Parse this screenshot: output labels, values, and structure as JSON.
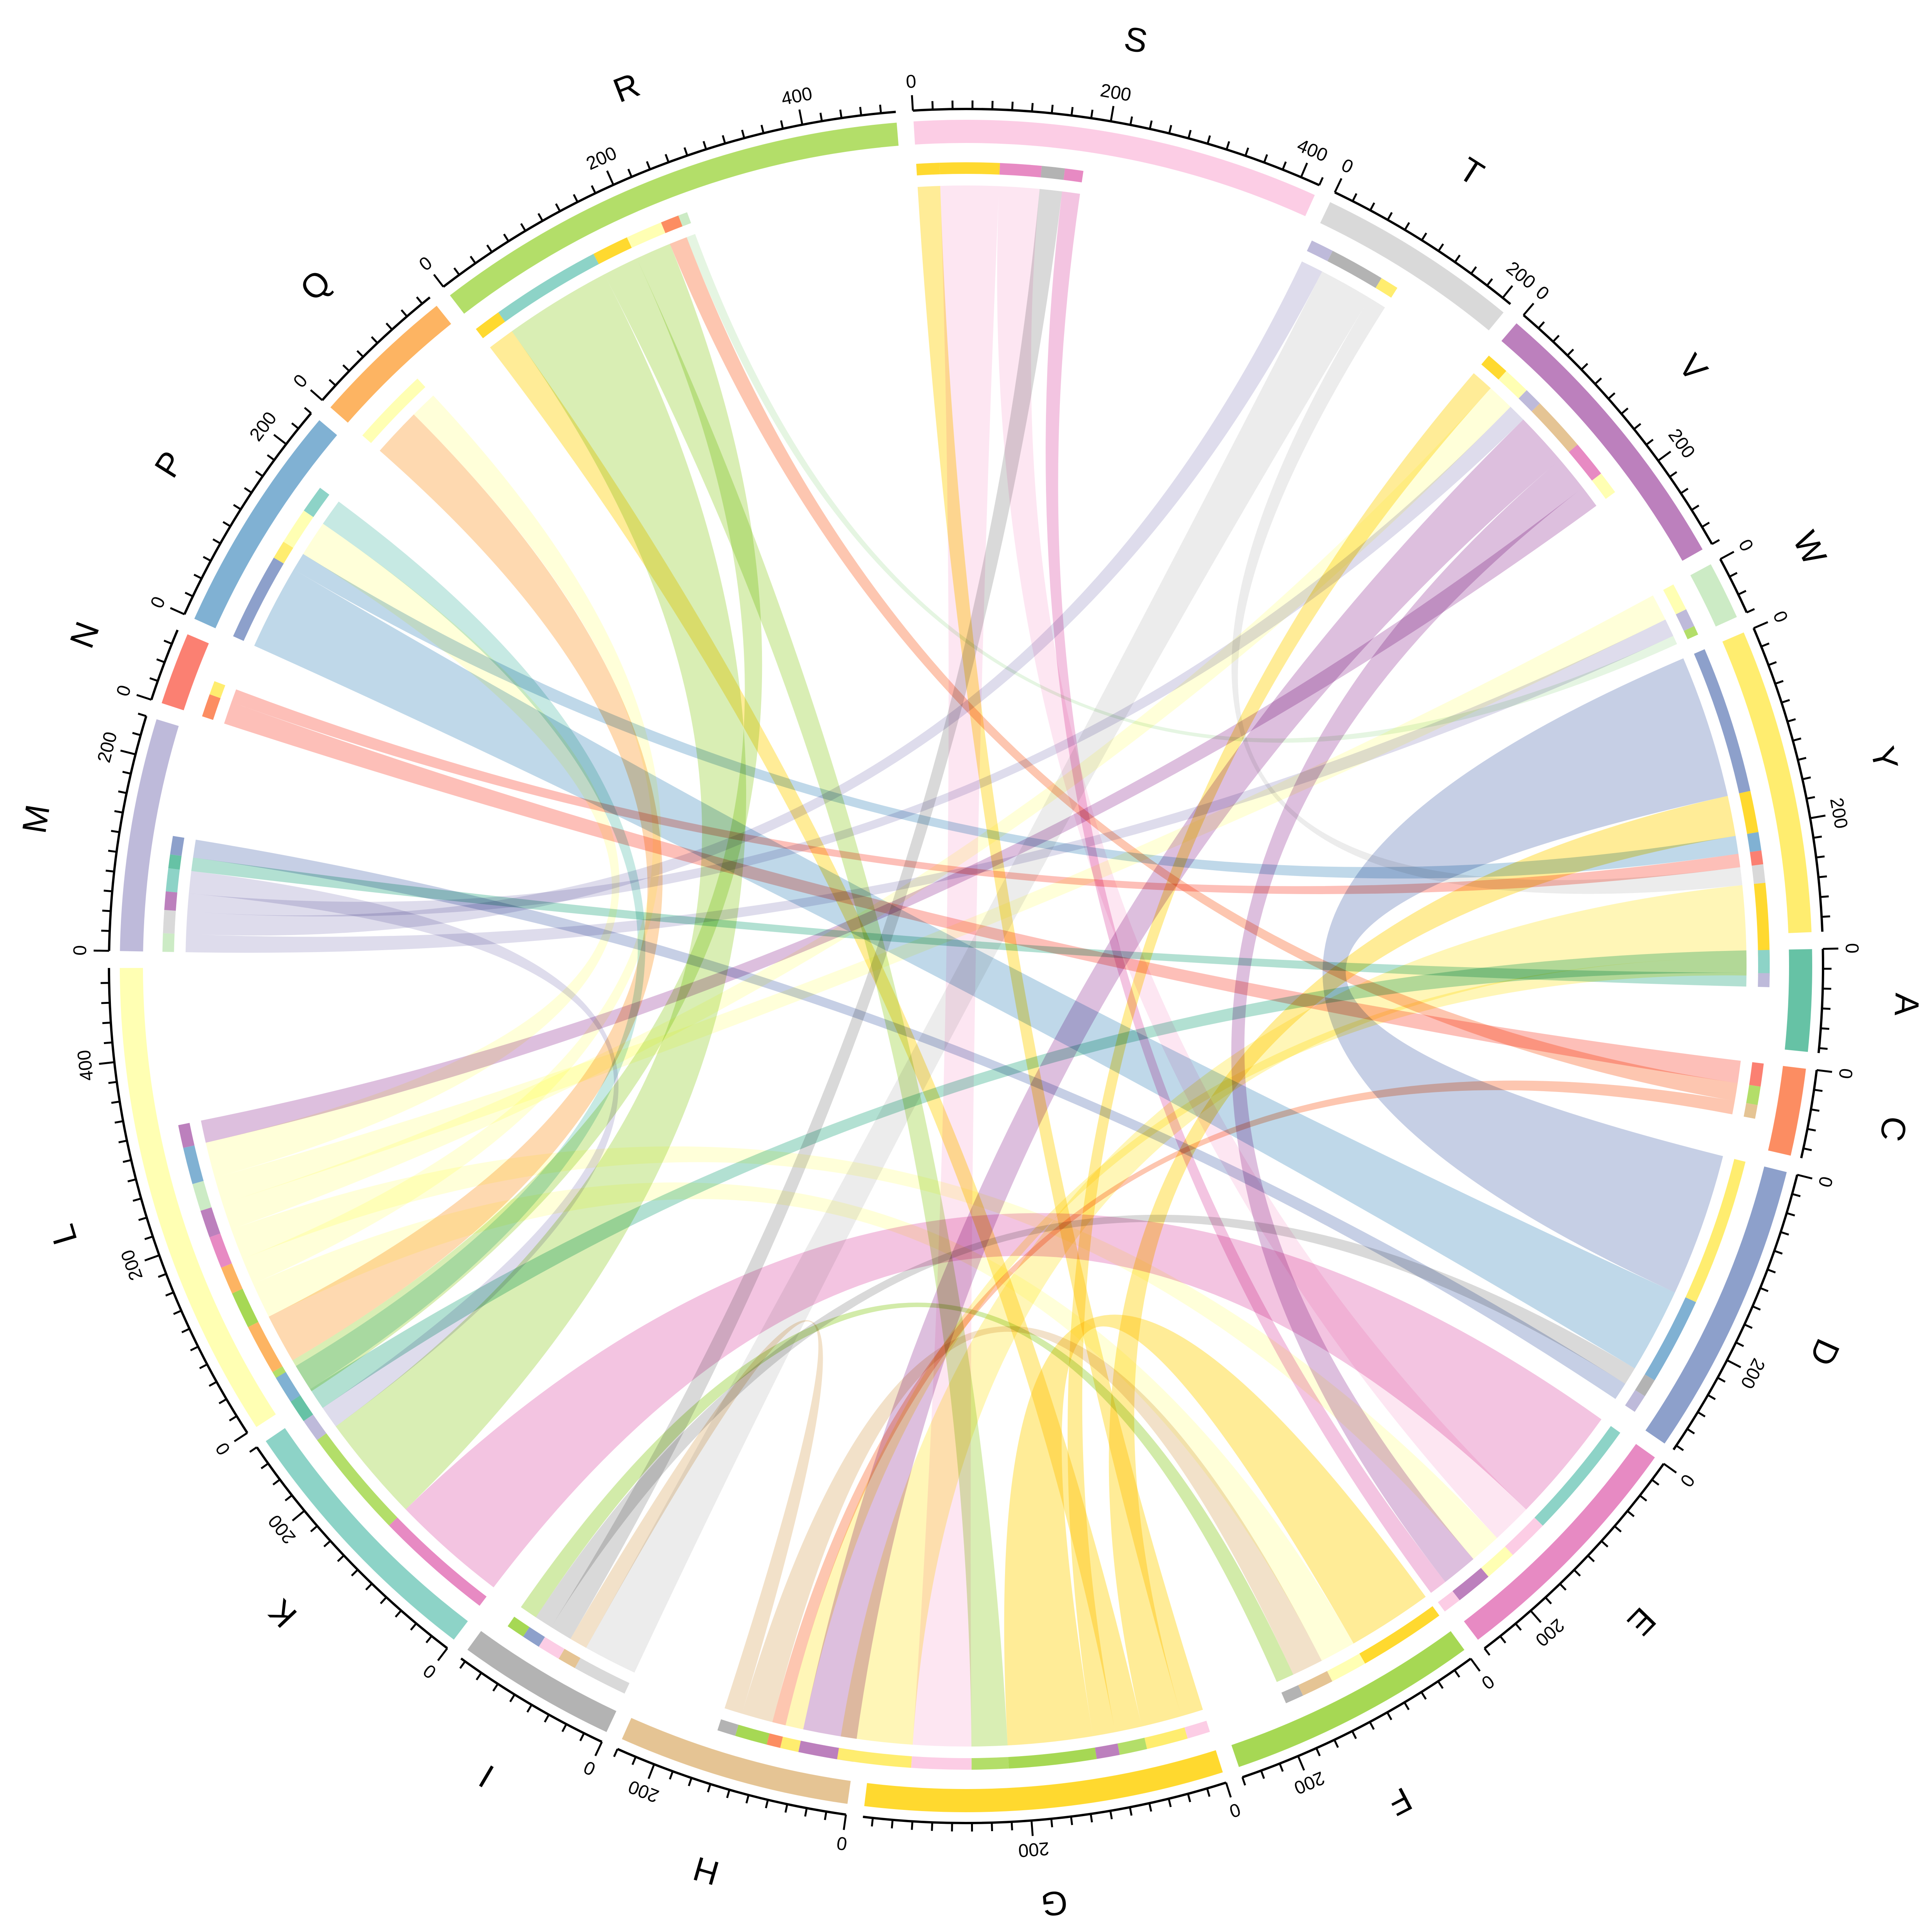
{
  "chart_data": {
    "type": "chord",
    "title": "",
    "sectors": [
      {
        "name": "A",
        "total": 105,
        "color": "#66C2A5"
      },
      {
        "name": "C",
        "total": 90,
        "color": "#FC8D62"
      },
      {
        "name": "D",
        "total": 305,
        "color": "#8DA0CB"
      },
      {
        "name": "E",
        "total": 260,
        "color": "#E78AC3"
      },
      {
        "name": "F",
        "total": 260,
        "color": "#A6D854"
      },
      {
        "name": "G",
        "total": 370,
        "color": "#FFD92F"
      },
      {
        "name": "H",
        "total": 240,
        "color": "#E5C494"
      },
      {
        "name": "I",
        "total": 165,
        "color": "#B3B3B3"
      },
      {
        "name": "K",
        "total": 280,
        "color": "#8DD3C7"
      },
      {
        "name": "L",
        "total": 495,
        "color": "#FFFFB3"
      },
      {
        "name": "M",
        "total": 240,
        "color": "#BEBADA"
      },
      {
        "name": "N",
        "total": 75,
        "color": "#FB8072"
      },
      {
        "name": "P",
        "total": 240,
        "color": "#80B1D3"
      },
      {
        "name": "Q",
        "total": 150,
        "color": "#FDB462"
      },
      {
        "name": "R",
        "total": 495,
        "color": "#B3DE69"
      },
      {
        "name": "S",
        "total": 420,
        "color": "#FCCDE5"
      },
      {
        "name": "T",
        "total": 210,
        "color": "#D9D9D9"
      },
      {
        "name": "V",
        "total": 300,
        "color": "#BC80BD"
      },
      {
        "name": "W",
        "total": 60,
        "color": "#CCEBC5"
      },
      {
        "name": "Y",
        "total": 315,
        "color": "#FFED6F"
      }
    ],
    "tick_interval_minor": 20,
    "tick_interval_major": 200,
    "links": [
      {
        "from": "D",
        "to": "Y",
        "value": 160
      },
      {
        "from": "E",
        "to": "K",
        "value": 130
      },
      {
        "from": "G",
        "to": "S",
        "value": 25
      },
      {
        "from": "G",
        "to": "Y",
        "value": 45
      },
      {
        "from": "G",
        "to": "R",
        "value": 30
      },
      {
        "from": "G",
        "to": "V",
        "value": 25
      },
      {
        "from": "G",
        "to": "F",
        "value": 95
      },
      {
        "from": "R",
        "to": "K",
        "value": 120
      },
      {
        "from": "R",
        "to": "G",
        "value": 40
      },
      {
        "from": "R",
        "to": "L",
        "value": 40
      },
      {
        "from": "S",
        "to": "G",
        "value": 65
      },
      {
        "from": "S",
        "to": "E",
        "value": 45
      },
      {
        "from": "P",
        "to": "D",
        "value": 95
      },
      {
        "from": "P",
        "to": "Y",
        "value": 20
      },
      {
        "from": "Q",
        "to": "L",
        "value": 55
      },
      {
        "from": "L",
        "to": "F",
        "value": 40
      },
      {
        "from": "L",
        "to": "Q",
        "value": 30
      },
      {
        "from": "L",
        "to": "E",
        "value": 35
      },
      {
        "from": "L",
        "to": "V",
        "value": 30
      },
      {
        "from": "L",
        "to": "W",
        "value": 30
      },
      {
        "from": "L",
        "to": "P",
        "value": 40
      },
      {
        "from": "M",
        "to": "W",
        "value": 20
      },
      {
        "from": "M",
        "to": "T",
        "value": 25
      },
      {
        "from": "M",
        "to": "V",
        "value": 20
      },
      {
        "from": "M",
        "to": "K",
        "value": 25
      },
      {
        "from": "N",
        "to": "C",
        "value": 25
      },
      {
        "from": "N",
        "to": "Y",
        "value": 15
      },
      {
        "from": "V",
        "to": "H",
        "value": 60
      },
      {
        "from": "V",
        "to": "E",
        "value": 40
      },
      {
        "from": "V",
        "to": "L",
        "value": 25
      },
      {
        "from": "T",
        "to": "I",
        "value": 60
      },
      {
        "from": "T",
        "to": "Y",
        "value": 20
      },
      {
        "from": "Y",
        "to": "G",
        "value": 80
      },
      {
        "from": "Y",
        "to": "H",
        "value": 20
      },
      {
        "from": "A",
        "to": "K",
        "value": 25
      },
      {
        "from": "A",
        "to": "M",
        "value": 15
      },
      {
        "from": "C",
        "to": "R",
        "value": 20
      },
      {
        "from": "C",
        "to": "H",
        "value": 15
      },
      {
        "from": "H",
        "to": "F",
        "value": 35
      },
      {
        "from": "H",
        "to": "I",
        "value": 20
      },
      {
        "from": "I",
        "to": "S",
        "value": 25
      },
      {
        "from": "I",
        "to": "D",
        "value": 20
      },
      {
        "from": "K",
        "to": "P",
        "value": 30
      },
      {
        "from": "F",
        "to": "I",
        "value": 20
      },
      {
        "from": "D",
        "to": "M",
        "value": 20
      },
      {
        "from": "E",
        "to": "S",
        "value": 20
      },
      {
        "from": "W",
        "to": "R",
        "value": 10
      }
    ]
  }
}
